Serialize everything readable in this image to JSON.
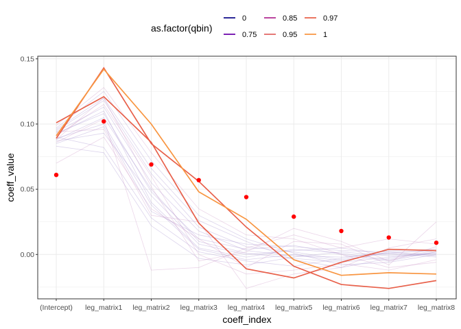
{
  "chart_data": {
    "type": "line",
    "xlabel": "coeff_index",
    "ylabel": "coeff_value",
    "categories": [
      "(Intercept)",
      "leg_matrix1",
      "leg_matrix2",
      "leg_matrix3",
      "leg_matrix4",
      "leg_matrix5",
      "leg_matrix6",
      "leg_matrix7",
      "leg_matrix8"
    ],
    "ylim": [
      -0.034,
      0.152
    ],
    "yticks": [
      0.0,
      0.05,
      0.1,
      0.15
    ],
    "ytick_labels": [
      "0.00",
      "0.05",
      "0.10",
      "0.15"
    ],
    "grid": true,
    "legend": {
      "title": "as.factor(qbin)",
      "placement": "top",
      "entries": [
        {
          "label": "0",
          "color": "#0d0887"
        },
        {
          "label": "0.75",
          "color": "#6a00a8"
        },
        {
          "label": "0.85",
          "color": "#b12a90"
        },
        {
          "label": "0.95",
          "color": "#e16462"
        },
        {
          "label": "0.97",
          "color": "#e8604a"
        },
        {
          "label": "1",
          "color": "#f89540"
        }
      ]
    },
    "series": [
      {
        "name": "0.97",
        "color": "#e8604a",
        "values": [
          0.101,
          0.121,
          0.086,
          0.024,
          -0.011,
          -0.018,
          -0.006,
          0.004,
          0.003
        ]
      },
      {
        "name": "0.97",
        "color": "#e8604a",
        "values": [
          0.089,
          0.143,
          0.085,
          0.056,
          0.021,
          -0.009,
          -0.023,
          -0.026,
          -0.02
        ]
      },
      {
        "name": "1",
        "color": "#f89540",
        "values": [
          0.091,
          0.142,
          0.1,
          0.048,
          0.027,
          -0.004,
          -0.016,
          -0.014,
          -0.015
        ]
      }
    ],
    "background_series": [
      {
        "color": "#9a84c8",
        "values": [
          0.095,
          0.118,
          0.062,
          0.021,
          0.006,
          0.002,
          -0.004,
          0.001,
          0.003
        ]
      },
      {
        "color": "#9a84c8",
        "values": [
          0.088,
          0.105,
          0.05,
          0.01,
          0.001,
          -0.003,
          -0.006,
          -0.002,
          0.001
        ]
      },
      {
        "color": "#9a84c8",
        "values": [
          0.092,
          0.11,
          0.04,
          0.005,
          -0.002,
          0.004,
          0.001,
          -0.004,
          0.002
        ]
      },
      {
        "color": "#9a84c8",
        "values": [
          0.085,
          0.098,
          0.033,
          0.015,
          0.008,
          0.006,
          0.003,
          0.002,
          -0.001
        ]
      },
      {
        "color": "#9a84c8",
        "values": [
          0.097,
          0.125,
          0.072,
          0.03,
          0.012,
          0.001,
          -0.008,
          -0.006,
          0.0
        ]
      },
      {
        "color": "#9a84c8",
        "values": [
          0.09,
          0.082,
          0.028,
          0.002,
          -0.005,
          -0.009,
          -0.003,
          0.003,
          0.004
        ]
      },
      {
        "color": "#9a84c8",
        "values": [
          0.094,
          0.113,
          0.055,
          0.018,
          0.003,
          -0.001,
          -0.002,
          0.001,
          -0.002
        ]
      },
      {
        "color": "#9a84c8",
        "values": [
          0.087,
          0.093,
          0.045,
          0.008,
          0.0,
          0.003,
          0.005,
          0.0,
          0.001
        ]
      },
      {
        "color": "#9a84c8",
        "values": [
          0.096,
          0.12,
          0.066,
          0.026,
          0.01,
          -0.004,
          -0.01,
          -0.003,
          0.003
        ]
      },
      {
        "color": "#9a84c8",
        "values": [
          0.083,
          0.078,
          0.022,
          -0.003,
          -0.008,
          -0.002,
          0.002,
          -0.001,
          0.0
        ]
      },
      {
        "color": "#9a84c8",
        "values": [
          0.093,
          0.108,
          0.048,
          0.012,
          0.004,
          0.007,
          0.0,
          -0.005,
          0.002
        ]
      },
      {
        "color": "#9a84c8",
        "values": [
          0.089,
          0.1,
          0.038,
          0.004,
          -0.004,
          0.0,
          -0.005,
          0.002,
          0.003
        ]
      },
      {
        "color": "#c58ac0",
        "values": [
          0.07,
          0.09,
          0.035,
          0.012,
          -0.01,
          0.01,
          0.008,
          -0.008,
          0.025
        ]
      },
      {
        "color": "#c58ac0",
        "values": [
          0.099,
          0.128,
          0.078,
          0.035,
          0.015,
          0.012,
          0.0,
          -0.01,
          -0.006
        ]
      },
      {
        "color": "#c58ac0",
        "values": [
          0.086,
          0.104,
          -0.012,
          -0.01,
          0.005,
          0.015,
          0.005,
          0.012,
          0.008
        ]
      },
      {
        "color": "#c58ac0",
        "values": [
          0.091,
          0.115,
          0.06,
          0.0,
          -0.015,
          -0.012,
          -0.007,
          -0.012,
          -0.004
        ]
      },
      {
        "color": "#c58ac0",
        "values": [
          0.094,
          0.096,
          0.03,
          0.025,
          -0.026,
          -0.015,
          -0.01,
          0.005,
          0.012
        ]
      },
      {
        "color": "#c58ac0",
        "values": [
          0.088,
          0.12,
          0.052,
          -0.005,
          0.002,
          0.02,
          0.01,
          -0.005,
          0.006
        ]
      }
    ],
    "points": {
      "color": "#ff0000",
      "values": [
        0.061,
        0.102,
        0.069,
        0.057,
        0.044,
        0.029,
        0.018,
        0.013,
        0.009
      ]
    }
  }
}
